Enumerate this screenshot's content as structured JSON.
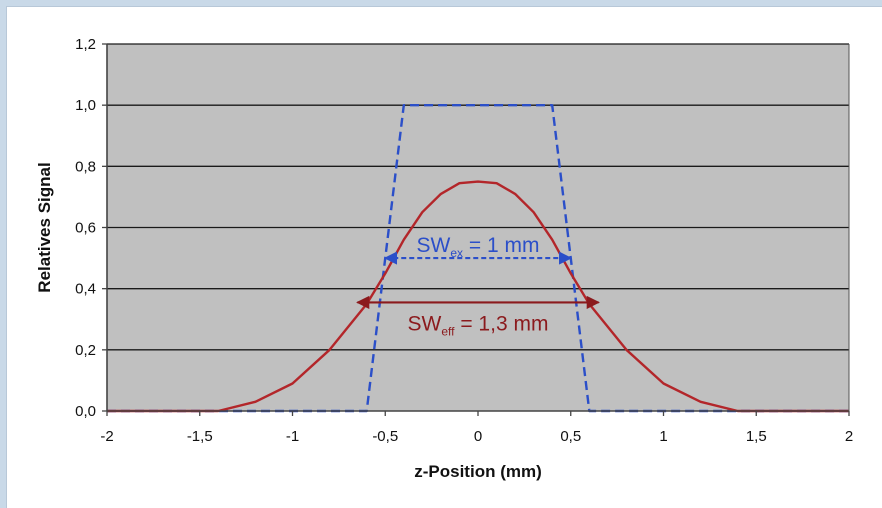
{
  "chart_data": {
    "type": "line",
    "xlabel": "z-Position (mm)",
    "ylabel": "Relatives Signal",
    "xlim": [
      -2,
      2
    ],
    "ylim": [
      0,
      1.2
    ],
    "x_ticks": [
      "-2",
      "-1,5",
      "-1",
      "-0,5",
      "0",
      "0,5",
      "1",
      "1,5",
      "2"
    ],
    "y_ticks": [
      "0,0",
      "0,2",
      "0,4",
      "0,6",
      "0,8",
      "1,0",
      "1,2"
    ],
    "grid": "horizontal",
    "plot_background": "#c0c0c0",
    "series": [
      {
        "color": "#2b4fc9",
        "dash": true,
        "x": [
          -2,
          -0.6,
          -0.4,
          0.4,
          0.6,
          2
        ],
        "y": [
          0,
          0,
          1.0,
          1.0,
          0,
          0
        ]
      },
      {
        "color": "#b3262a",
        "dash": false,
        "x": [
          -2,
          -1.4,
          -1.2,
          -1.0,
          -0.8,
          -0.6,
          -0.5,
          -0.4,
          -0.3,
          -0.2,
          -0.1,
          0,
          0.1,
          0.2,
          0.3,
          0.4,
          0.5,
          0.6,
          0.8,
          1.0,
          1.2,
          1.4,
          2
        ],
        "y": [
          0,
          0,
          0.03,
          0.09,
          0.2,
          0.35,
          0.45,
          0.56,
          0.65,
          0.71,
          0.745,
          0.75,
          0.745,
          0.71,
          0.65,
          0.56,
          0.45,
          0.35,
          0.2,
          0.09,
          0.03,
          0,
          0
        ]
      }
    ],
    "annotations": [
      {
        "main": "SW",
        "sub": "ex",
        "rest": " = 1 mm",
        "color": "#2b4fc9",
        "arrow_x": [
          -0.5,
          0.5
        ],
        "arrow_y": 0.5,
        "dashed": true
      },
      {
        "main": "SW",
        "sub": "eff",
        "rest": " = 1,3 mm",
        "color": "#8b1a1d",
        "arrow_x": [
          -0.65,
          0.65
        ],
        "arrow_y": 0.355,
        "dashed": false
      }
    ]
  }
}
